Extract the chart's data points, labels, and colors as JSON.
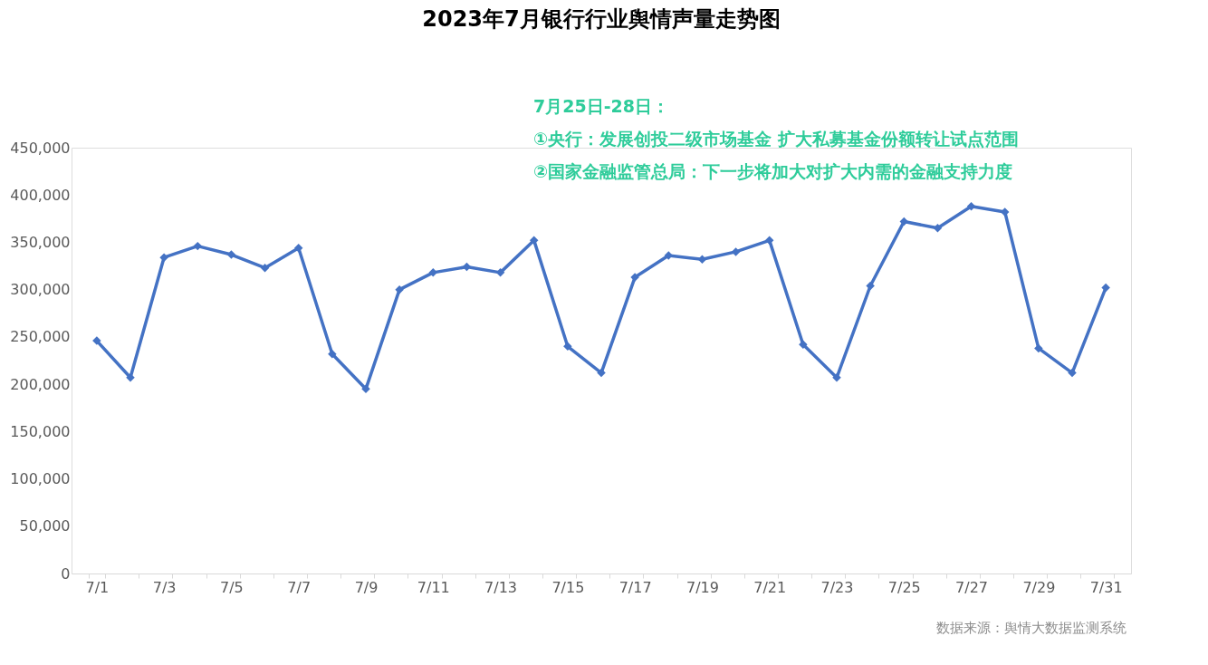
{
  "chart_data": {
    "type": "line",
    "title": "2023年7月银行行业舆情声量走势图",
    "categories": [
      "7/1",
      null,
      "7/3",
      null,
      "7/5",
      null,
      "7/7",
      null,
      "7/9",
      null,
      "7/11",
      null,
      "7/13",
      null,
      "7/15",
      null,
      "7/17",
      null,
      "7/19",
      null,
      "7/21",
      null,
      "7/23",
      null,
      "7/25",
      null,
      "7/27",
      null,
      "7/29",
      null,
      "7/31"
    ],
    "series": [
      {
        "color": "#4472c4",
        "values": [
          246000,
          207000,
          334000,
          346000,
          337000,
          323000,
          344000,
          232000,
          195000,
          300000,
          318000,
          324000,
          318000,
          352000,
          240000,
          212000,
          313000,
          336000,
          332000,
          340000,
          352000,
          242000,
          207000,
          304000,
          372000,
          365000,
          388000,
          382000,
          238000,
          212000,
          302000
        ]
      }
    ],
    "ylim": [
      0,
      450000
    ],
    "yticks": [
      {
        "value": 0,
        "label": "0"
      },
      {
        "value": 50000,
        "label": "50,000"
      },
      {
        "value": 100000,
        "label": "100,000"
      },
      {
        "value": 150000,
        "label": "150,000"
      },
      {
        "value": 200000,
        "label": "200,000"
      },
      {
        "value": 250000,
        "label": "250,000"
      },
      {
        "value": 300000,
        "label": "300,000"
      },
      {
        "value": 350000,
        "label": "350,000"
      },
      {
        "value": 400000,
        "label": "400,000"
      },
      {
        "value": 450000,
        "label": "450,000"
      }
    ],
    "grid": false,
    "marker": "diamond",
    "line_style": "solid",
    "annotations": [
      "7月25日-28日：",
      "①央行：发展创投二级市场基金 扩大私募基金份额转让试点范围",
      "②国家金融监管总局：下一步将加大对扩大内需的金融支持力度",
      "数据来源：舆情大数据监测系统"
    ]
  }
}
